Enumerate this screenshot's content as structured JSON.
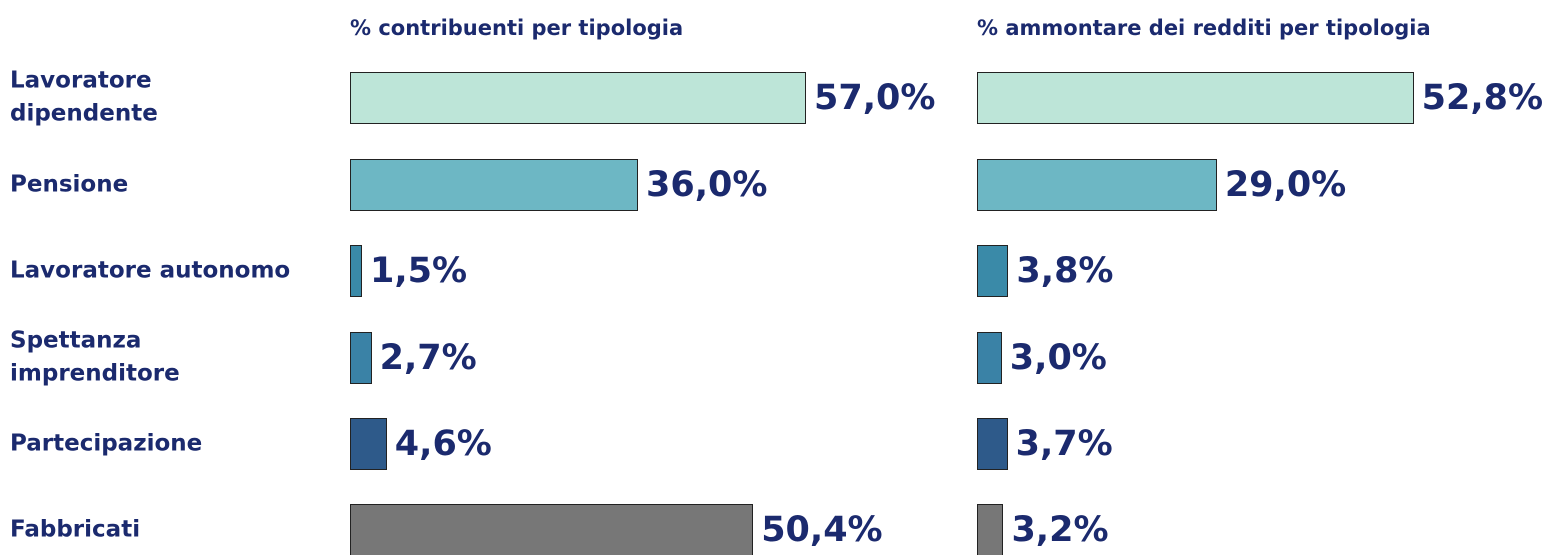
{
  "chart_data": [
    {
      "type": "bar",
      "title": "% contribuenti per tipologia",
      "categories": [
        "Lavoratore\ndipendente",
        "Pensione",
        "Lavoratore autonomo",
        "Spettanza\nimprenditore",
        "Partecipazione",
        "Fabbricati"
      ],
      "values": [
        57.0,
        36.0,
        1.5,
        2.7,
        4.6,
        50.4
      ],
      "value_labels": [
        "57,0%",
        "36,0%",
        "1,5%",
        "2,7%",
        "4,6%",
        "50,4%"
      ],
      "colors": [
        "#bde5d8",
        "#6db7c4",
        "#3a8aa8",
        "#3a82a6",
        "#2e5a8a",
        "#777777"
      ]
    },
    {
      "type": "bar",
      "title": "% ammontare dei redditi per tipologia",
      "values": [
        52.8,
        29.0,
        3.8,
        3.0,
        3.7,
        3.2
      ],
      "value_labels": [
        "52,8%",
        "29,0%",
        "3,8%",
        "3,0%",
        "3,7%",
        "3,2%"
      ],
      "colors": [
        "#bde5d8",
        "#6db7c4",
        "#3a8aa8",
        "#3a82a6",
        "#2e5a8a",
        "#777777"
      ]
    }
  ]
}
